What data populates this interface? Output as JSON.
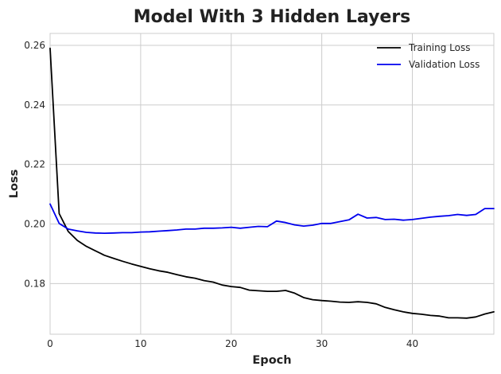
{
  "chart_data": {
    "type": "line",
    "title": "Model With 3 Hidden Layers",
    "xlabel": "Epoch",
    "ylabel": "Loss",
    "xlim": [
      0,
      49
    ],
    "ylim": [
      0.163,
      0.264
    ],
    "xticks": [
      0,
      10,
      20,
      30,
      40
    ],
    "yticks": [
      0.18,
      0.2,
      0.22,
      0.24,
      0.26
    ],
    "grid": true,
    "legend_position": "top-right",
    "x": [
      0,
      1,
      2,
      3,
      4,
      5,
      6,
      7,
      8,
      9,
      10,
      11,
      12,
      13,
      14,
      15,
      16,
      17,
      18,
      19,
      20,
      21,
      22,
      23,
      24,
      25,
      26,
      27,
      28,
      29,
      30,
      31,
      32,
      33,
      34,
      35,
      36,
      37,
      38,
      39,
      40,
      41,
      42,
      43,
      44,
      45,
      46,
      47,
      48,
      49
    ],
    "series": [
      {
        "name": "Training Loss",
        "color": "#000000",
        "values": [
          0.259,
          0.2035,
          0.1975,
          0.1945,
          0.1925,
          0.191,
          0.1895,
          0.1885,
          0.1875,
          0.1866,
          0.1858,
          0.185,
          0.1843,
          0.1838,
          0.183,
          0.1823,
          0.1818,
          0.181,
          0.1805,
          0.1795,
          0.179,
          0.1787,
          0.1778,
          0.1776,
          0.1774,
          0.1774,
          0.1777,
          0.1768,
          0.1753,
          0.1746,
          0.1743,
          0.1741,
          0.1738,
          0.1737,
          0.1739,
          0.1737,
          0.1732,
          0.172,
          0.1712,
          0.1705,
          0.17,
          0.1697,
          0.1693,
          0.1691,
          0.1685,
          0.1685,
          0.1684,
          0.1688,
          0.1698,
          0.1705
        ]
      },
      {
        "name": "Validation Loss",
        "color": "#0000ee",
        "values": [
          0.2067,
          0.2002,
          0.1983,
          0.1977,
          0.1972,
          0.197,
          0.1969,
          0.197,
          0.1971,
          0.1971,
          0.1973,
          0.1974,
          0.1976,
          0.1978,
          0.198,
          0.1983,
          0.1983,
          0.1986,
          0.1986,
          0.1987,
          0.1989,
          0.1986,
          0.1989,
          0.1992,
          0.1991,
          0.201,
          0.2005,
          0.1997,
          0.1993,
          0.1996,
          0.2002,
          0.2002,
          0.2008,
          0.2014,
          0.2033,
          0.202,
          0.2022,
          0.2015,
          0.2016,
          0.2013,
          0.2015,
          0.2019,
          0.2023,
          0.2026,
          0.2028,
          0.2032,
          0.2029,
          0.2032,
          0.2052,
          0.2052
        ]
      }
    ]
  }
}
